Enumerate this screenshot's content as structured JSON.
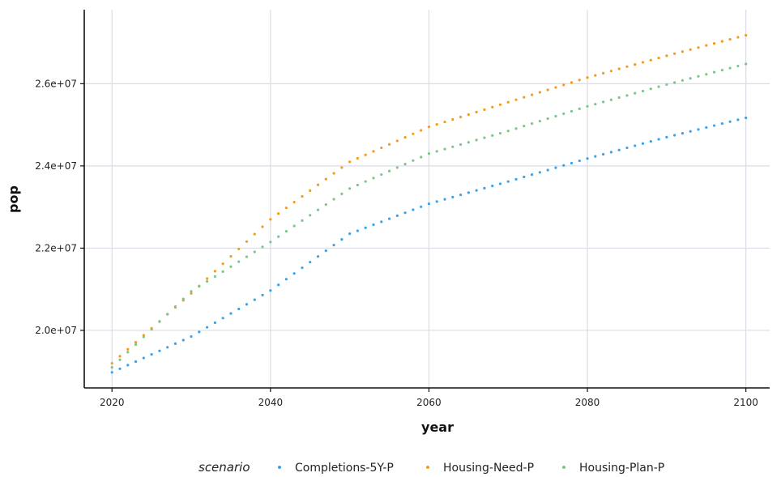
{
  "chart_data": {
    "type": "scatter",
    "xlabel": "year",
    "ylabel": "pop",
    "xlim": [
      2016.5,
      2103
    ],
    "ylim": [
      18600000,
      27800000
    ],
    "x_ticks": [
      2020,
      2040,
      2060,
      2080,
      2100
    ],
    "x_tick_labels": [
      "2020",
      "2040",
      "2060",
      "2080",
      "2100"
    ],
    "y_ticks": [
      20000000,
      22000000,
      24000000,
      26000000
    ],
    "y_tick_labels": [
      "2.0e+07",
      "2.2e+07",
      "2.4e+07",
      "2.6e+07"
    ],
    "grid": true,
    "legend": {
      "position": "bottom",
      "title": "scenario",
      "entries": [
        "Completions-5Y-P",
        "Housing-Need-P",
        "Housing-Plan-P"
      ]
    },
    "series": [
      {
        "name": "Completions-5Y-P",
        "color": "#3ba3e6",
        "x_range": [
          2020,
          2100
        ],
        "anchors": [
          [
            2020,
            18980000
          ],
          [
            2030,
            19850000
          ],
          [
            2040,
            20970000
          ],
          [
            2050,
            22350000
          ],
          [
            2060,
            23080000
          ],
          [
            2070,
            23620000
          ],
          [
            2080,
            24180000
          ],
          [
            2090,
            24700000
          ],
          [
            2100,
            25170000
          ]
        ]
      },
      {
        "name": "Housing-Need-P",
        "color": "#f59a1b",
        "x_range": [
          2020,
          2100
        ],
        "anchors": [
          [
            2020,
            19200000
          ],
          [
            2030,
            20900000
          ],
          [
            2040,
            22700000
          ],
          [
            2050,
            24100000
          ],
          [
            2060,
            24950000
          ],
          [
            2070,
            25550000
          ],
          [
            2080,
            26150000
          ],
          [
            2090,
            26680000
          ],
          [
            2100,
            27180000
          ]
        ]
      },
      {
        "name": "Housing-Plan-P",
        "color": "#7fc589",
        "x_range": [
          2020,
          2100
        ],
        "anchors": [
          [
            2020,
            19100000
          ],
          [
            2030,
            20950000
          ],
          [
            2040,
            22150000
          ],
          [
            2050,
            23450000
          ],
          [
            2060,
            24300000
          ],
          [
            2070,
            24850000
          ],
          [
            2080,
            25450000
          ],
          [
            2090,
            25980000
          ],
          [
            2100,
            26480000
          ]
        ]
      }
    ]
  }
}
